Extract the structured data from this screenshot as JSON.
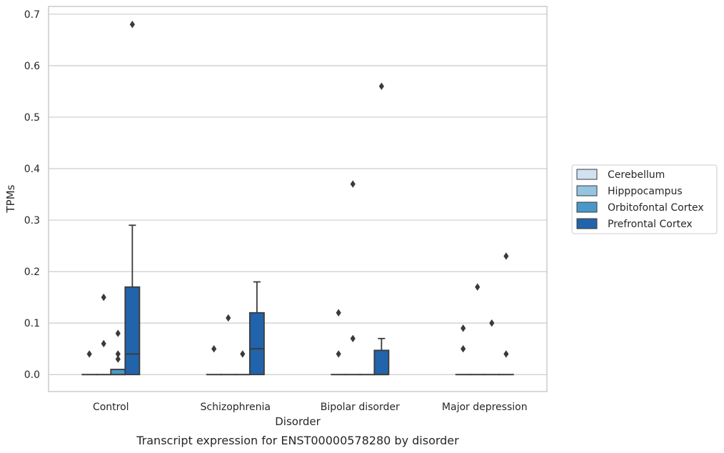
{
  "chart_data": {
    "type": "box",
    "caption": "Transcript expression for ENST00000578280 by disorder",
    "xlabel": "Disorder",
    "ylabel": "TPMs",
    "ylim": [
      -0.033,
      0.715
    ],
    "yticks": [
      0.0,
      0.1,
      0.2,
      0.3,
      0.4,
      0.5,
      0.6,
      0.7
    ],
    "ytick_labels": [
      "0.0",
      "0.1",
      "0.2",
      "0.3",
      "0.4",
      "0.5",
      "0.6",
      "0.7"
    ],
    "categories": [
      "Control",
      "Schizophrenia",
      "Bipolar disorder",
      "Major depression"
    ],
    "grid": "horizontal",
    "legend_position": "right",
    "series": [
      {
        "name": "Cerebellum",
        "color": "#d0e1f2",
        "boxes": [
          {
            "category": "Control",
            "q1": 0,
            "median": 0,
            "q3": 0,
            "whisker_low": 0,
            "whisker_high": 0,
            "outliers": [
              0.04
            ]
          },
          {
            "category": "Schizophrenia",
            "q1": 0,
            "median": 0,
            "q3": 0,
            "whisker_low": 0,
            "whisker_high": 0,
            "outliers": [
              0.05
            ]
          },
          {
            "category": "Bipolar disorder",
            "q1": 0,
            "median": 0,
            "q3": 0,
            "whisker_low": 0,
            "whisker_high": 0,
            "outliers": [
              0.12,
              0.04
            ]
          },
          {
            "category": "Major depression",
            "q1": 0,
            "median": 0,
            "q3": 0,
            "whisker_low": 0,
            "whisker_high": 0,
            "outliers": [
              0.09,
              0.05
            ]
          }
        ]
      },
      {
        "name": "Hipppocampus",
        "color": "#94c4df",
        "boxes": [
          {
            "category": "Control",
            "q1": 0,
            "median": 0,
            "q3": 0,
            "whisker_low": 0,
            "whisker_high": 0,
            "outliers": [
              0.15,
              0.06
            ]
          },
          {
            "category": "Schizophrenia",
            "q1": 0,
            "median": 0,
            "q3": 0,
            "whisker_low": 0,
            "whisker_high": 0,
            "outliers": [
              0.11
            ]
          },
          {
            "category": "Bipolar disorder",
            "q1": 0,
            "median": 0,
            "q3": 0,
            "whisker_low": 0,
            "whisker_high": 0,
            "outliers": [
              0.37,
              0.07
            ]
          },
          {
            "category": "Major depression",
            "q1": 0,
            "median": 0,
            "q3": 0,
            "whisker_low": 0,
            "whisker_high": 0,
            "outliers": [
              0.17
            ]
          }
        ]
      },
      {
        "name": "Orbitofontal Cortex",
        "color": "#4a98c9",
        "boxes": [
          {
            "category": "Control",
            "q1": 0,
            "median": 0,
            "q3": 0.01,
            "whisker_low": 0,
            "whisker_high": 0.01,
            "outliers": [
              0.08,
              0.04,
              0.03
            ]
          },
          {
            "category": "Schizophrenia",
            "q1": 0,
            "median": 0,
            "q3": 0,
            "whisker_low": 0,
            "whisker_high": 0,
            "outliers": [
              0.04
            ]
          },
          {
            "category": "Bipolar disorder",
            "q1": 0,
            "median": 0,
            "q3": 0,
            "whisker_low": 0,
            "whisker_high": 0,
            "outliers": []
          },
          {
            "category": "Major depression",
            "q1": 0,
            "median": 0,
            "q3": 0,
            "whisker_low": 0,
            "whisker_high": 0,
            "outliers": [
              0.1
            ]
          }
        ]
      },
      {
        "name": "Prefrontal Cortex",
        "color": "#2164ab",
        "boxes": [
          {
            "category": "Control",
            "q1": 0,
            "median": 0.04,
            "q3": 0.17,
            "whisker_low": 0,
            "whisker_high": 0.29,
            "outliers": [
              0.68
            ]
          },
          {
            "category": "Schizophrenia",
            "q1": 0,
            "median": 0.05,
            "q3": 0.12,
            "whisker_low": 0,
            "whisker_high": 0.18,
            "outliers": []
          },
          {
            "category": "Bipolar disorder",
            "q1": 0,
            "median": 0,
            "q3": 0.047,
            "whisker_low": 0,
            "whisker_high": 0.07,
            "outliers": [
              0.56
            ]
          },
          {
            "category": "Major depression",
            "q1": 0,
            "median": 0,
            "q3": 0,
            "whisker_low": 0,
            "whisker_high": 0,
            "outliers": [
              0.23,
              0.04
            ]
          }
        ]
      }
    ]
  }
}
